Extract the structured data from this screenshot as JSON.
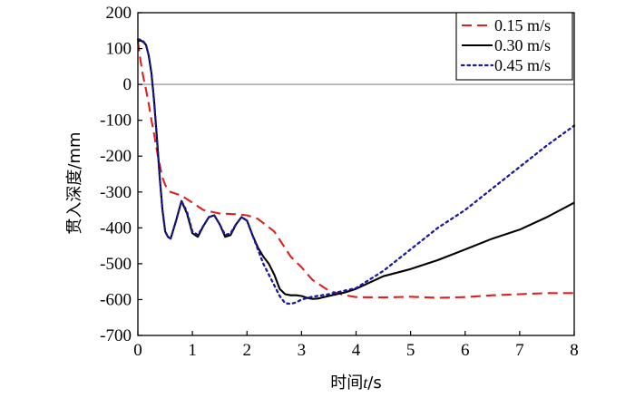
{
  "chart_data": {
    "type": "line",
    "xlabel_parts": [
      {
        "text": "时间",
        "italic": false
      },
      {
        "text": "t",
        "italic": true
      },
      {
        "text": "/s",
        "italic": false
      }
    ],
    "ylabel": "贯入深度/mm",
    "xlim": [
      0,
      8
    ],
    "ylim": [
      -700,
      200
    ],
    "xticks": [
      0,
      1,
      2,
      3,
      4,
      5,
      6,
      7,
      8
    ],
    "yticks": [
      200,
      100,
      0,
      -100,
      -200,
      -300,
      -400,
      -500,
      -600,
      -700
    ],
    "reference_line_y": 0,
    "legend_position": "top-right",
    "series": [
      {
        "name": "0.15 m/s",
        "color": "#e02020",
        "dash": "dashed",
        "x": [
          0,
          0.05,
          0.1,
          0.15,
          0.2,
          0.25,
          0.3,
          0.35,
          0.4,
          0.45,
          0.5,
          0.55,
          0.6,
          0.7,
          0.8,
          1.0,
          1.2,
          1.5,
          1.8,
          2.0,
          2.2,
          2.5,
          2.8,
          3.0,
          3.2,
          3.5,
          3.8,
          4.0,
          4.5,
          5.0,
          5.5,
          6.0,
          6.5,
          7.0,
          7.5,
          8.0
        ],
        "values": [
          120,
          65,
          20,
          -15,
          -55,
          -100,
          -140,
          -185,
          -225,
          -260,
          -280,
          -293,
          -300,
          -305,
          -310,
          -330,
          -350,
          -360,
          -362,
          -365,
          -375,
          -410,
          -480,
          -510,
          -545,
          -575,
          -588,
          -593,
          -594,
          -592,
          -595,
          -593,
          -588,
          -585,
          -582,
          -582
        ]
      },
      {
        "name": "0.30 m/s",
        "color": "#000000",
        "dash": "solid",
        "x": [
          0,
          0.05,
          0.1,
          0.15,
          0.2,
          0.25,
          0.3,
          0.35,
          0.4,
          0.45,
          0.5,
          0.55,
          0.6,
          0.7,
          0.8,
          0.9,
          1.0,
          1.1,
          1.2,
          1.3,
          1.4,
          1.5,
          1.6,
          1.7,
          1.8,
          1.9,
          2.0,
          2.1,
          2.2,
          2.3,
          2.4,
          2.5,
          2.6,
          2.7,
          2.8,
          2.9,
          3.0,
          3.1,
          3.2,
          3.3,
          3.5,
          3.8,
          4.0,
          4.5,
          5.0,
          5.5,
          6.0,
          6.5,
          7.0,
          7.5,
          8.0
        ],
        "values": [
          120,
          123,
          118,
          110,
          80,
          30,
          -50,
          -150,
          -260,
          -350,
          -410,
          -425,
          -430,
          -380,
          -325,
          -360,
          -415,
          -425,
          -395,
          -370,
          -365,
          -390,
          -425,
          -420,
          -390,
          -370,
          -380,
          -420,
          -455,
          -480,
          -500,
          -530,
          -570,
          -585,
          -588,
          -588,
          -590,
          -595,
          -598,
          -597,
          -590,
          -580,
          -570,
          -535,
          -515,
          -490,
          -460,
          -430,
          -405,
          -370,
          -330
        ]
      },
      {
        "name": "0.45 m/s",
        "color": "#1a1aa0",
        "dash": "dotted",
        "x": [
          0,
          0.05,
          0.1,
          0.15,
          0.2,
          0.25,
          0.3,
          0.35,
          0.4,
          0.45,
          0.5,
          0.55,
          0.6,
          0.7,
          0.8,
          0.9,
          1.0,
          1.1,
          1.2,
          1.3,
          1.4,
          1.5,
          1.6,
          1.7,
          1.8,
          1.9,
          2.0,
          2.1,
          2.2,
          2.3,
          2.4,
          2.5,
          2.6,
          2.7,
          2.8,
          2.9,
          3.0,
          3.2,
          3.5,
          4.0,
          4.5,
          5.0,
          5.5,
          6.0,
          6.5,
          7.0,
          7.5,
          8.0
        ],
        "values": [
          125,
          125,
          120,
          110,
          80,
          30,
          -50,
          -150,
          -260,
          -350,
          -410,
          -425,
          -430,
          -380,
          -325,
          -355,
          -410,
          -420,
          -395,
          -370,
          -365,
          -390,
          -420,
          -415,
          -390,
          -370,
          -380,
          -420,
          -460,
          -500,
          -530,
          -560,
          -590,
          -610,
          -612,
          -608,
          -600,
          -592,
          -585,
          -568,
          -520,
          -460,
          -400,
          -350,
          -290,
          -230,
          -170,
          -115
        ]
      }
    ]
  }
}
